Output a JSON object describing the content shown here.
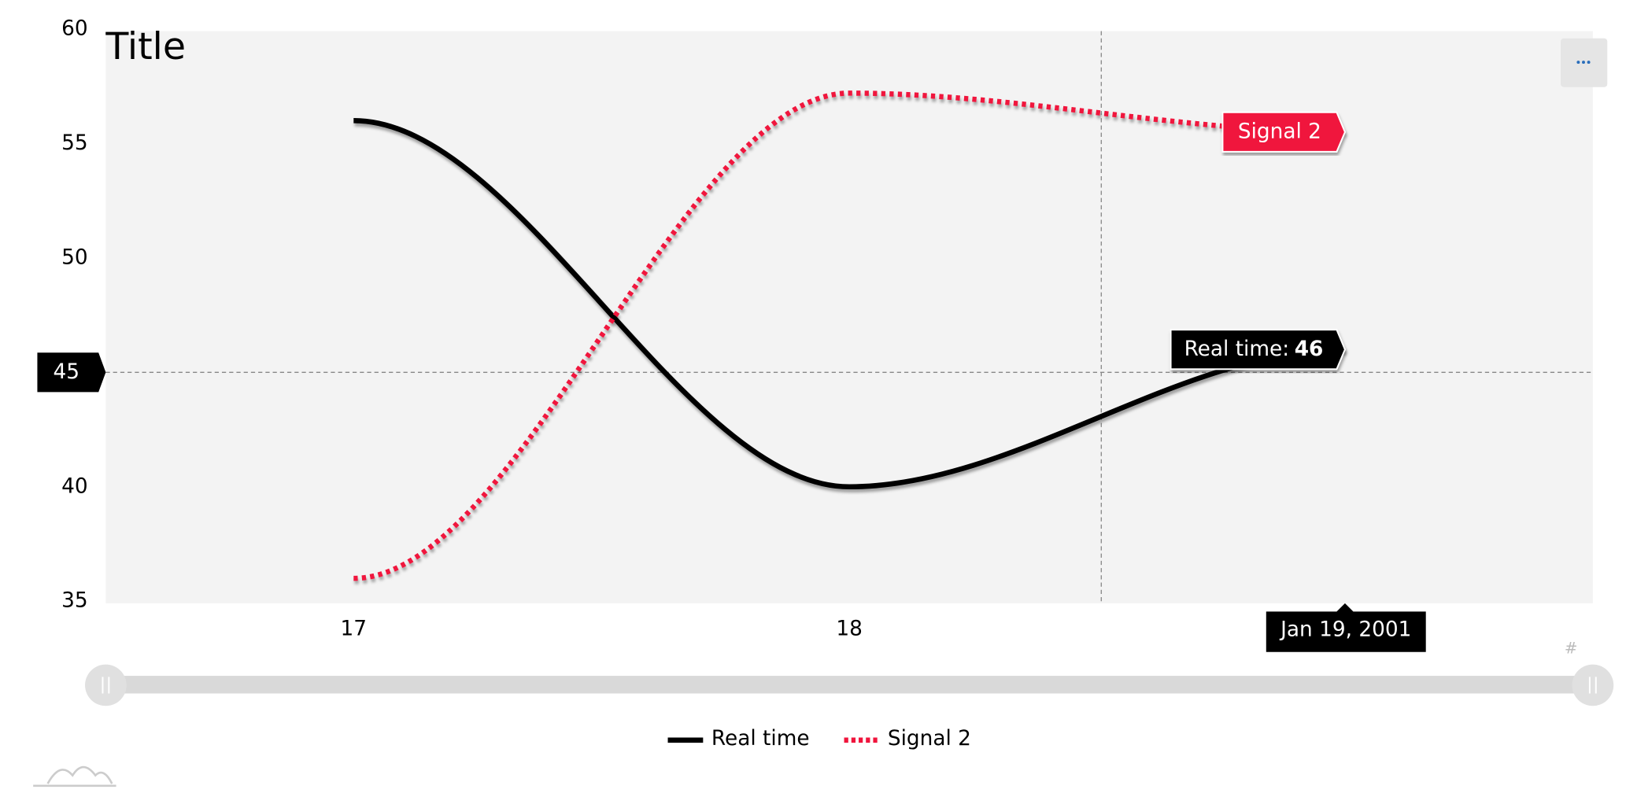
{
  "chart_data": {
    "type": "line",
    "title": "Title",
    "x": [
      "2001-01-17",
      "2001-01-18",
      "2001-01-19"
    ],
    "xlim": [
      "2001-01-16T12:00:00Z",
      "2001-01-19T12:00:00Z"
    ],
    "xticks": [
      {
        "value": "2001-01-17",
        "label": "17"
      },
      {
        "value": "2001-01-18",
        "label": "18"
      }
    ],
    "ylim": [
      35,
      60
    ],
    "yticks": [
      35,
      40,
      45,
      50,
      55,
      60
    ],
    "series": [
      {
        "name": "Real time",
        "color": "#000000",
        "dash": "solid",
        "values": [
          56,
          40,
          46
        ]
      },
      {
        "name": "Signal 2",
        "color": "#f0143c",
        "dash": "dotted",
        "values": [
          36,
          57.2,
          55.5
        ]
      }
    ],
    "tooltip_label": "Real time:",
    "cursor": {
      "y": 45,
      "x_label": "Jan 19, 2001"
    },
    "corner_mark": "#"
  }
}
